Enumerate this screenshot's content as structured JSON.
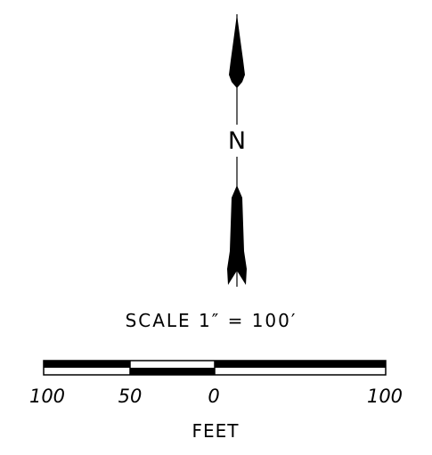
{
  "north_arrow": {
    "label": "N"
  },
  "scale": {
    "label": "SCALE 1″ = 100′",
    "ticks": [
      "100",
      "50",
      "0",
      "100"
    ],
    "units": "FEET"
  }
}
